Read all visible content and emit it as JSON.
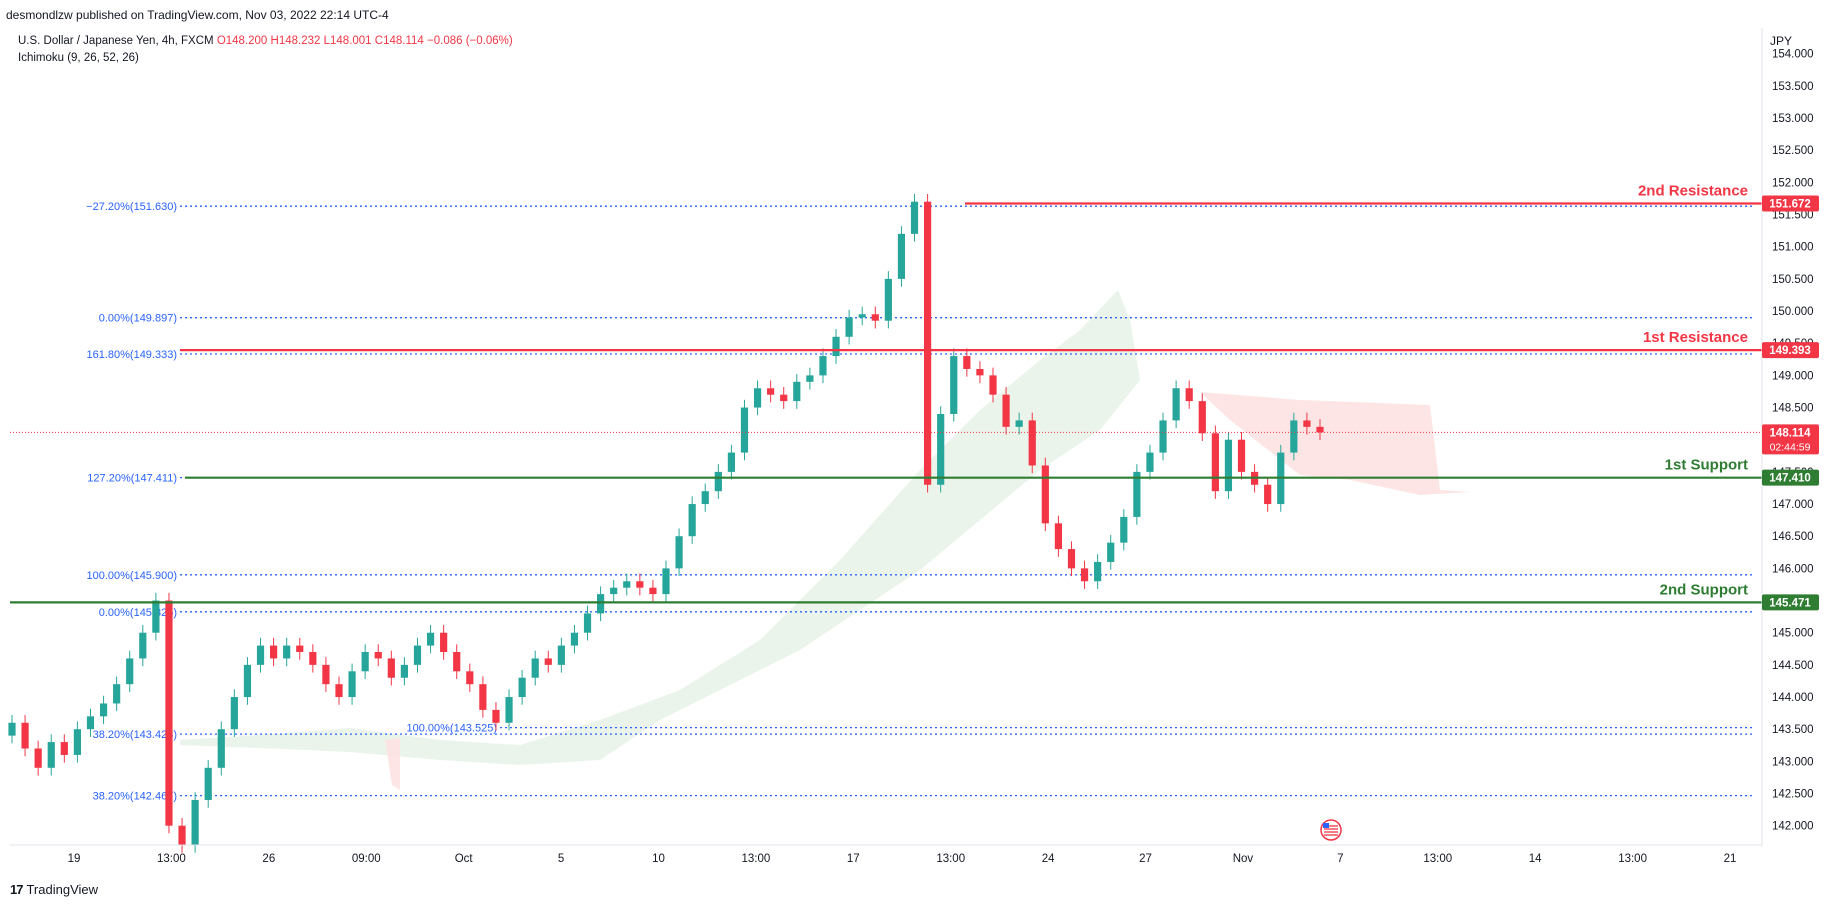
{
  "header": {
    "publish_text": "desmondlzw published on TradingView.com, Nov 03, 2022 22:14 UTC-4",
    "symbol": "U.S. Dollar / Japanese Yen, 4h, FXCM",
    "ohlc": {
      "o": "O148.200",
      "h": "H148.232",
      "l": "L148.001",
      "c": "C148.114",
      "chg": "−0.086 (−0.06%)"
    },
    "indicator": "Ichimoku (9, 26, 52, 26)",
    "currency": "JPY"
  },
  "footer": {
    "logo_text": "TradingView",
    "logo_mark": "17"
  },
  "colors": {
    "up": "#26a69a",
    "down": "#f23645",
    "support": "#2e7d32",
    "resistance": "#f23645",
    "fib": "#2962ff",
    "cloud_green": "#e8f3e8",
    "cloud_red": "#fde2e2"
  },
  "chart_data": {
    "type": "candlestick",
    "y_axis": {
      "ylim": [
        141.7,
        154.4
      ],
      "ticks": [
        "142.000",
        "142.500",
        "143.000",
        "143.500",
        "144.000",
        "144.500",
        "145.000",
        "145.500",
        "146.000",
        "146.500",
        "147.000",
        "147.500",
        "148.000",
        "148.500",
        "149.000",
        "149.500",
        "150.000",
        "150.500",
        "151.000",
        "151.500",
        "152.000",
        "152.500",
        "153.000",
        "153.500",
        "154.000"
      ]
    },
    "x_axis": {
      "ticks": [
        "19",
        "13:00",
        "26",
        "09:00",
        "Oct",
        "5",
        "10",
        "13:00",
        "17",
        "13:00",
        "24",
        "27",
        "Nov",
        "7",
        "13:00",
        "14",
        "13:00",
        "21"
      ]
    },
    "levels": [
      {
        "label": "2nd Resistance",
        "value": 151.672,
        "price_tag": "151.672",
        "kind": "resistance"
      },
      {
        "label": "1st Resistance",
        "value": 149.393,
        "price_tag": "149.393",
        "kind": "resistance"
      },
      {
        "label": "1st Support",
        "value": 147.41,
        "price_tag": "147.410",
        "kind": "support"
      },
      {
        "label": "2nd Support",
        "value": 145.471,
        "price_tag": "145.471",
        "kind": "support"
      }
    ],
    "current_price": {
      "value": 148.114,
      "label": "148.114",
      "countdown": "02:44:59"
    },
    "fib_labels": [
      {
        "text": "−27.20%(151.630)",
        "value": 151.63
      },
      {
        "text": "0.00%(149.897)",
        "value": 149.897
      },
      {
        "text": "161.80%(149.333)",
        "value": 149.333
      },
      {
        "text": "127.20%(147.411)",
        "value": 147.411
      },
      {
        "text": "100.00%(145.900)",
        "value": 145.9
      },
      {
        "text": "0.00%(145.325)",
        "value": 145.325
      },
      {
        "text": "38.20%(143.423)",
        "value": 143.423
      },
      {
        "text": "100.00%(143.525)",
        "value": 143.525
      },
      {
        "text": "38.20%(142.467)",
        "value": 142.467
      }
    ],
    "candles": {
      "start_price": 143.4,
      "path": [
        143.6,
        143.2,
        142.9,
        143.3,
        143.1,
        143.5,
        143.7,
        143.9,
        144.2,
        144.6,
        145.0,
        145.5,
        142.0,
        141.7,
        142.4,
        142.9,
        143.5,
        144.0,
        144.5,
        144.8,
        144.6,
        144.8,
        144.7,
        144.5,
        144.2,
        144.0,
        144.4,
        144.7,
        144.6,
        144.3,
        144.5,
        144.8,
        145.0,
        144.7,
        144.4,
        144.2,
        143.8,
        143.6,
        144.0,
        144.3,
        144.6,
        144.5,
        144.8,
        145.0,
        145.3,
        145.6,
        145.7,
        145.8,
        145.7,
        145.6,
        146.0,
        146.5,
        147.0,
        147.2,
        147.5,
        147.8,
        148.5,
        148.8,
        148.7,
        148.6,
        148.9,
        149.0,
        149.3,
        149.6,
        149.9,
        149.95,
        149.85,
        150.5,
        151.2,
        151.7,
        147.3,
        148.4,
        149.3,
        149.1,
        149.0,
        148.7,
        148.2,
        148.3,
        147.6,
        146.7,
        146.3,
        146.0,
        145.8,
        146.1,
        146.4,
        146.8,
        147.5,
        147.8,
        148.3,
        148.8,
        148.6,
        148.1,
        147.2,
        148.0,
        147.5,
        147.3,
        147.0,
        147.8,
        148.3,
        148.2,
        148.114
      ]
    },
    "ichimoku_note": "cloud shown shaded"
  }
}
